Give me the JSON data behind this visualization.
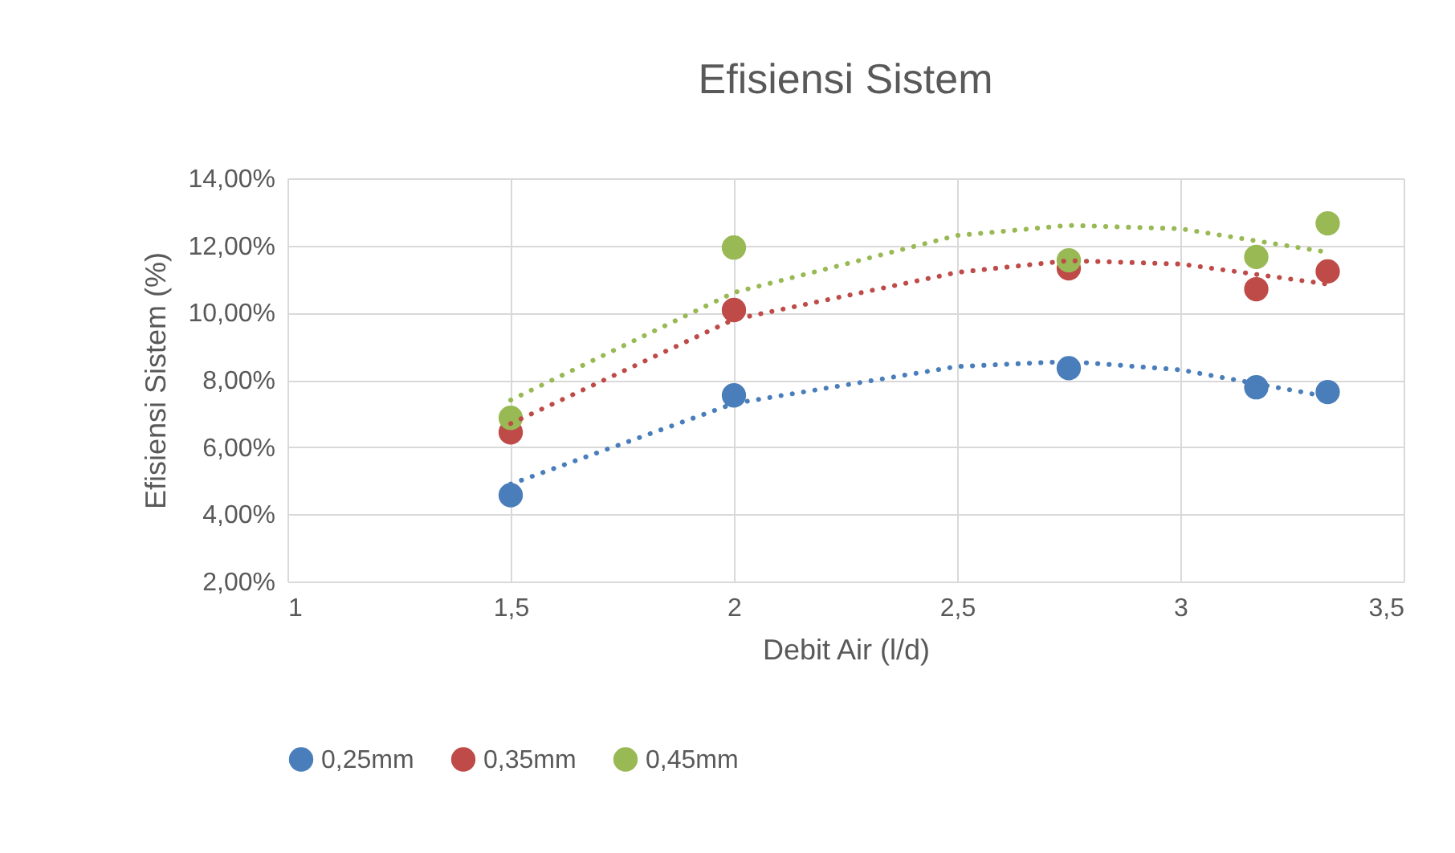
{
  "chart_data": {
    "type": "scatter",
    "title": "Efisiensi Sistem",
    "xlabel": "Debit Air (l/d)",
    "ylabel": "Efisiensi Sistem (%)",
    "x": [
      1.5,
      2,
      2.75,
      3.17,
      3.33
    ],
    "series": [
      {
        "name": "0,25mm",
        "color": "#4a7ebb",
        "values": [
          4.57,
          7.54,
          8.35,
          7.78,
          7.64
        ]
      },
      {
        "name": "0,35mm",
        "color": "#be4b48",
        "values": [
          6.44,
          10.08,
          11.32,
          10.7,
          11.23
        ]
      },
      {
        "name": "0,45mm",
        "color": "#98b954",
        "values": [
          6.87,
          11.94,
          11.56,
          11.66,
          12.66
        ]
      },
      {
        "type": "line",
        "color": "#4a7ebb",
        "line_style": "dotted",
        "marker": "none",
        "x": [
          1.5,
          2,
          2.5,
          2.75,
          3,
          3.33
        ],
        "values": [
          4.9,
          7.3,
          8.4,
          8.55,
          8.3,
          7.5
        ]
      },
      {
        "type": "line",
        "color": "#be4b48",
        "line_style": "dotted",
        "marker": "none",
        "x": [
          1.5,
          2,
          2.5,
          2.75,
          3,
          3.33
        ],
        "values": [
          6.7,
          9.8,
          11.2,
          11.55,
          11.45,
          10.85
        ]
      },
      {
        "type": "line",
        "color": "#98b954",
        "line_style": "dotted",
        "marker": "none",
        "x": [
          1.5,
          2,
          2.5,
          2.75,
          3,
          3.33
        ],
        "values": [
          7.4,
          10.6,
          12.3,
          12.6,
          12.5,
          11.8
        ]
      }
    ],
    "xlim": [
      1,
      3.5
    ],
    "xticks": [
      1,
      {
        "value": 1.5,
        "label": "1,5"
      },
      2,
      {
        "value": 2.5,
        "label": "2,5"
      },
      3,
      {
        "value": 3.5,
        "label": "3,5"
      }
    ],
    "ylim": [
      2,
      14
    ],
    "yticks": [
      {
        "value": 2,
        "label": "2,00%"
      },
      {
        "value": 4,
        "label": "4,00%"
      },
      {
        "value": 6,
        "label": "6,00%"
      },
      {
        "value": 8,
        "label": "8,00%"
      },
      {
        "value": 10,
        "label": "10,00%"
      },
      {
        "value": 12,
        "label": "12,00%"
      },
      {
        "value": 14,
        "label": "14,00%"
      }
    ],
    "grid": true,
    "legend": "bottom",
    "marker": "circle"
  }
}
